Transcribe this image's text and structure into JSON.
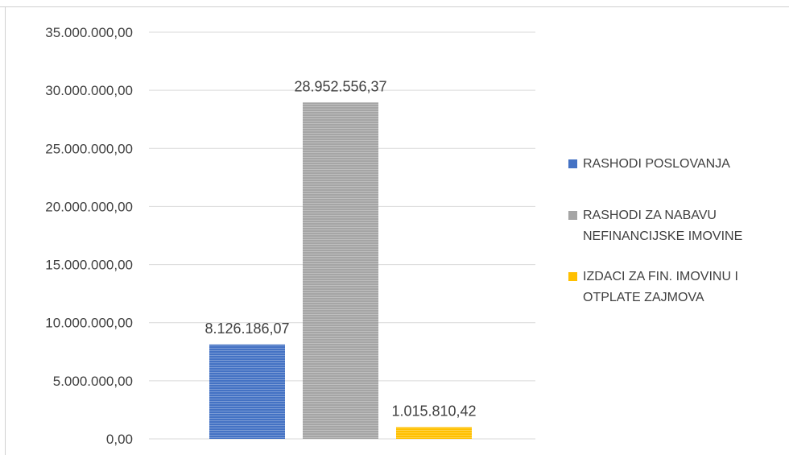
{
  "chart_data": {
    "type": "bar",
    "title": "",
    "xlabel": "",
    "ylabel": "",
    "ylim": [
      0,
      35000000
    ],
    "yticks": [
      0,
      5000000,
      10000000,
      15000000,
      20000000,
      25000000,
      30000000,
      35000000
    ],
    "ytick_labels": [
      "0,00",
      "5.000.000,00",
      "10.000.000,00",
      "15.000.000,00",
      "20.000.000,00",
      "25.000.000,00",
      "30.000.000,00",
      "35.000.000,00"
    ],
    "grid": true,
    "legend_position": "right",
    "series": [
      {
        "name": "RASHODI POSLOVANJA",
        "legend_lines": [
          "RASHODI POSLOVANJA"
        ],
        "value": 8126186.07,
        "label": "8.126.186,07",
        "color": "#4472c4"
      },
      {
        "name": "RASHODI ZA NABAVU NEFINANCIJSKE IMOVINE",
        "legend_lines": [
          "RASHODI ZA NABAVU",
          "NEFINANCIJSKE IMOVINE"
        ],
        "value": 28952556.37,
        "label": "28.952.556,37",
        "color": "#a5a5a5"
      },
      {
        "name": "IZDACI ZA FIN. IMOVINU I OTPLATE ZAJMOVA",
        "legend_lines": [
          "IZDACI ZA FIN. IMOVINU I",
          "OTPLATE ZAJMOVA"
        ],
        "value": 1015810.42,
        "label": "1.015.810,42",
        "color": "#ffc000"
      }
    ]
  }
}
